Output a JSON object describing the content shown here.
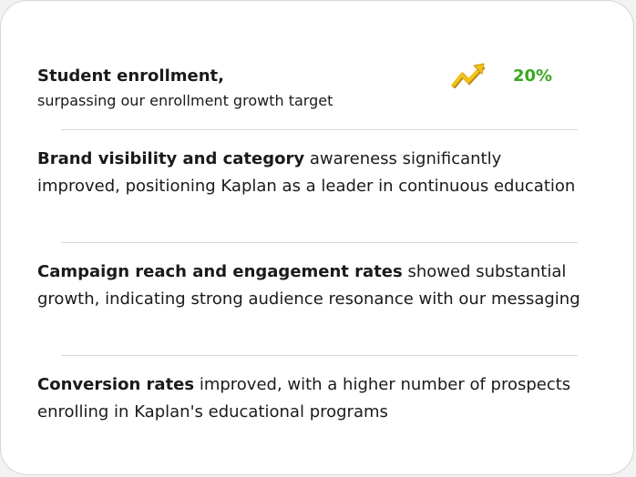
{
  "enrollment": {
    "title": "Student enrollment,",
    "subtitle": "surpassing our enrollment growth target",
    "metric_value": "20%",
    "metric_icon": "trend-up-arrow-icon",
    "metric_color": "#3aa623",
    "icon_color": "#f2c21b"
  },
  "brand": {
    "bold": "Brand visibility and category",
    "text": " awareness significantly improved, positioning Kaplan as a leader in continuous education"
  },
  "campaign": {
    "bold": "Campaign reach and engagement rates",
    "text": " showed substantial growth, indicating strong audience resonance with our messaging"
  },
  "conversion": {
    "bold": "Conversion rates",
    "text": " improved, with a higher number of prospects enrolling in Kaplan's educational programs"
  }
}
